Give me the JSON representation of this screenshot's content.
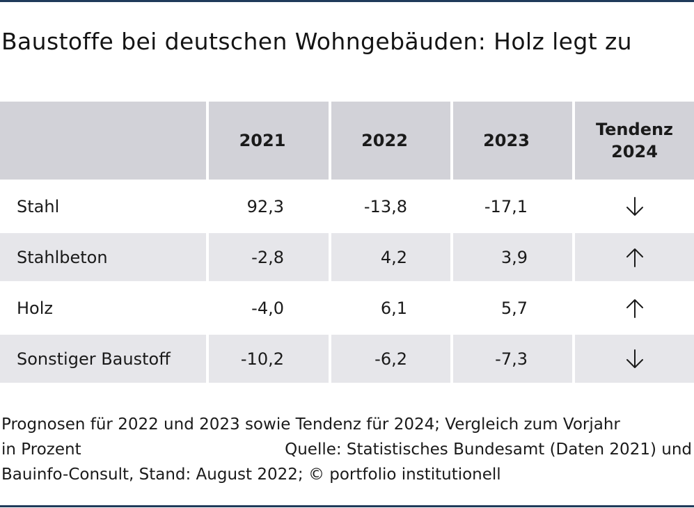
{
  "title": "Baustoffe bei deutschen Wohngebäuden: Holz legt zu",
  "colors": {
    "rule": "#1f3a5a",
    "header_bg": "#d2d2d8",
    "row_shade_bg": "#e6e6ea"
  },
  "chart_data": {
    "type": "table",
    "title": "Baustoffe bei deutschen Wohngebäuden: Holz legt zu",
    "columns": [
      "",
      "2021",
      "2022",
      "2023",
      "Tendenz\n2024"
    ],
    "rows": [
      {
        "label": "Stahl",
        "values": [
          "92,3",
          "-13,8",
          "-17,1"
        ],
        "trend": "down"
      },
      {
        "label": "Stahlbeton",
        "values": [
          "-2,8",
          "4,2",
          "3,9"
        ],
        "trend": "up"
      },
      {
        "label": "Holz",
        "values": [
          "-4,0",
          "6,1",
          "5,7"
        ],
        "trend": "up"
      },
      {
        "label": "Sonstiger Baustoff",
        "values": [
          "-10,2",
          "-6,2",
          "-7,3"
        ],
        "trend": "down"
      }
    ]
  },
  "footer": {
    "line1": "Prognosen für 2022 und 2023 sowie Tendenz für 2024; Vergleich zum Vorjahr",
    "line2_left": "in Prozent",
    "line2_right": "Quelle: Statistisches Bundesamt (Daten 2021) und",
    "line3": "Bauinfo-Consult, Stand: August 2022; © portfolio institutionell"
  }
}
